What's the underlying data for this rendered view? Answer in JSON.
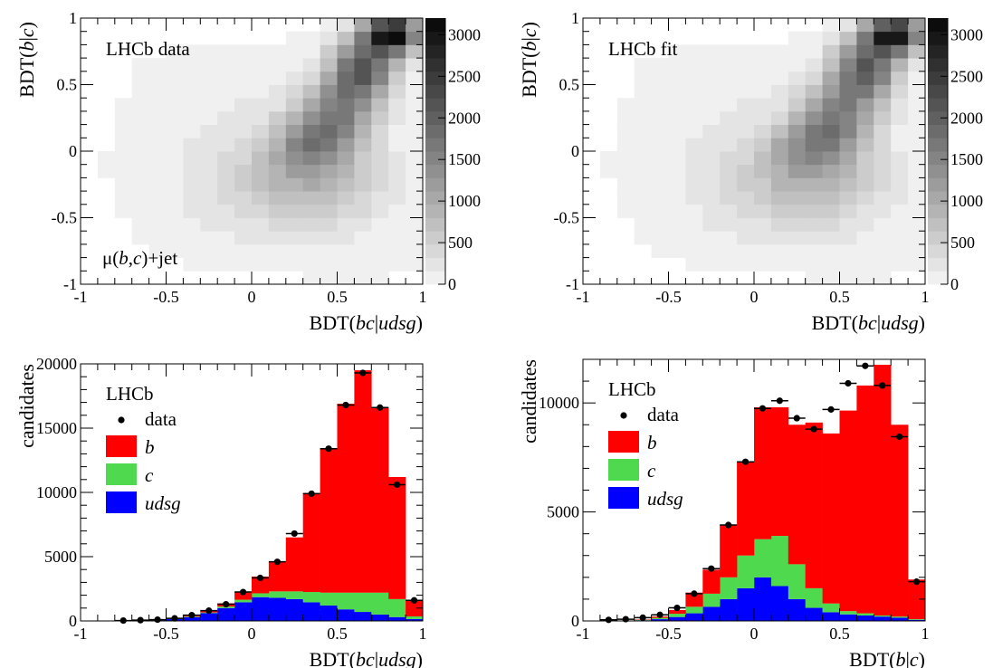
{
  "chart_data": [
    {
      "type": "heatmap",
      "panel": "top-left",
      "label": "LHCb data",
      "annotation": "μ(b,c)+jet",
      "xlabel": "BDT(bc|udsg)",
      "ylabel": "BDT(b|c)",
      "xlim": [
        -1,
        1
      ],
      "ylim": [
        -1,
        1
      ],
      "x_ticks": [
        "-1",
        "-0.5",
        "0",
        "0.5",
        "1"
      ],
      "y_ticks": [
        "-1",
        "-0.5",
        "0",
        "0.5",
        "1"
      ],
      "colorbar_range": [
        0,
        3200
      ],
      "colorbar_ticks": [
        "0",
        "500",
        "1000",
        "1500",
        "2000",
        "2500",
        "3000"
      ],
      "colormap": "grayscale (white to black)",
      "description_of_shape": "counts concentrated along band from (0.1,-0.2) toward (0.9,0.9), peak near (0.85,0.9)"
    },
    {
      "type": "heatmap",
      "panel": "top-right",
      "label": "LHCb fit",
      "xlabel": "BDT(bc|udsg)",
      "ylabel": "BDT(b|c)",
      "xlim": [
        -1,
        1
      ],
      "ylim": [
        -1,
        1
      ],
      "x_ticks": [
        "-1",
        "-0.5",
        "0",
        "0.5",
        "1"
      ],
      "y_ticks": [
        "-1",
        "-0.5",
        "0",
        "0.5",
        "1"
      ],
      "colorbar_range": [
        0,
        3200
      ],
      "colorbar_ticks": [
        "0",
        "500",
        "1000",
        "1500",
        "2000",
        "2500",
        "3000"
      ],
      "colormap": "grayscale (white to black)"
    },
    {
      "type": "bar",
      "stacked": true,
      "panel": "bottom-left",
      "label": "LHCb",
      "xlabel": "BDT(bc|udsg)",
      "ylabel": "candidates",
      "xlim": [
        -1,
        1
      ],
      "ylim": [
        0,
        20000
      ],
      "x_ticks": [
        "-1",
        "-0.5",
        "0",
        "0.5",
        "1"
      ],
      "y_ticks": [
        "0",
        "5000",
        "10000",
        "15000",
        "20000"
      ],
      "bin_edges": [
        -1.0,
        -0.9,
        -0.8,
        -0.7,
        -0.6,
        -0.5,
        -0.4,
        -0.3,
        -0.2,
        -0.1,
        0.0,
        0.1,
        0.2,
        0.3,
        0.4,
        0.5,
        0.6,
        0.7,
        0.8,
        0.9,
        1.0
      ],
      "series": [
        {
          "name": "udsg",
          "color": "#0000ff",
          "values": [
            0,
            0,
            0,
            20,
            60,
            150,
            300,
            600,
            1000,
            1450,
            1850,
            1800,
            1700,
            1450,
            1200,
            900,
            700,
            500,
            300,
            150
          ]
        },
        {
          "name": "c",
          "color": "#4fd94f",
          "values": [
            0,
            0,
            0,
            0,
            10,
            20,
            40,
            60,
            120,
            200,
            300,
            500,
            600,
            800,
            1000,
            1300,
            1500,
            1700,
            1400,
            200
          ]
        },
        {
          "name": "b",
          "color": "#ff0000",
          "values": [
            0,
            0,
            0,
            0,
            10,
            20,
            60,
            150,
            250,
            600,
            1300,
            2300,
            4200,
            7700,
            11200,
            14700,
            17300,
            14400,
            9500,
            1250
          ]
        }
      ],
      "data": {
        "name": "data",
        "x": [
          -0.75,
          -0.65,
          -0.55,
          -0.45,
          -0.35,
          -0.25,
          -0.15,
          -0.05,
          0.05,
          0.15,
          0.25,
          0.35,
          0.45,
          0.55,
          0.65,
          0.75,
          0.85,
          0.95
        ],
        "y": [
          30,
          60,
          100,
          200,
          450,
          800,
          1300,
          2250,
          3350,
          4600,
          6800,
          9900,
          13400,
          16800,
          19300,
          16600,
          10600,
          1600
        ]
      },
      "legend": [
        "data",
        "b",
        "c",
        "udsg"
      ],
      "legend_position": "top-left"
    },
    {
      "type": "bar",
      "stacked": true,
      "panel": "bottom-right",
      "label": "LHCb",
      "xlabel": "BDT(b|c)",
      "ylabel": "candidates",
      "xlim": [
        -1,
        1
      ],
      "ylim": [
        0,
        12000
      ],
      "x_ticks": [
        "-1",
        "-0.5",
        "0",
        "0.5",
        "1"
      ],
      "y_ticks": [
        "0",
        "5000",
        "10000"
      ],
      "bin_edges": [
        -1.0,
        -0.9,
        -0.8,
        -0.7,
        -0.6,
        -0.5,
        -0.4,
        -0.3,
        -0.2,
        -0.1,
        0.0,
        0.1,
        0.2,
        0.3,
        0.4,
        0.5,
        0.6,
        0.7,
        0.8,
        0.9,
        1.0
      ],
      "series": [
        {
          "name": "udsg",
          "color": "#0000ff",
          "values": [
            0,
            0,
            0,
            30,
            80,
            180,
            350,
            650,
            1000,
            1500,
            2000,
            1600,
            1000,
            600,
            400,
            300,
            250,
            200,
            150,
            50
          ]
        },
        {
          "name": "c",
          "color": "#4fd94f",
          "values": [
            0,
            0,
            0,
            20,
            60,
            150,
            300,
            600,
            1000,
            1500,
            1750,
            2300,
            1600,
            900,
            400,
            150,
            100,
            50,
            50,
            30
          ]
        },
        {
          "name": "b",
          "color": "#ff0000",
          "values": [
            0,
            0,
            0,
            20,
            60,
            170,
            650,
            1100,
            2400,
            4300,
            6050,
            5900,
            6400,
            7600,
            7800,
            9200,
            10450,
            11500,
            8800,
            1820
          ]
        }
      ],
      "data": {
        "name": "data",
        "x": [
          -0.85,
          -0.75,
          -0.65,
          -0.55,
          -0.45,
          -0.35,
          -0.25,
          -0.15,
          -0.05,
          0.05,
          0.15,
          0.25,
          0.35,
          0.45,
          0.55,
          0.65,
          0.75,
          0.85,
          0.95
        ],
        "y": [
          50,
          80,
          150,
          280,
          600,
          1250,
          2400,
          4400,
          7300,
          9750,
          10100,
          9300,
          8800,
          9700,
          10900,
          11700,
          10800,
          8450,
          1800
        ]
      },
      "legend": [
        "data",
        "b",
        "c",
        "udsg"
      ],
      "legend_position": "top-left"
    }
  ]
}
